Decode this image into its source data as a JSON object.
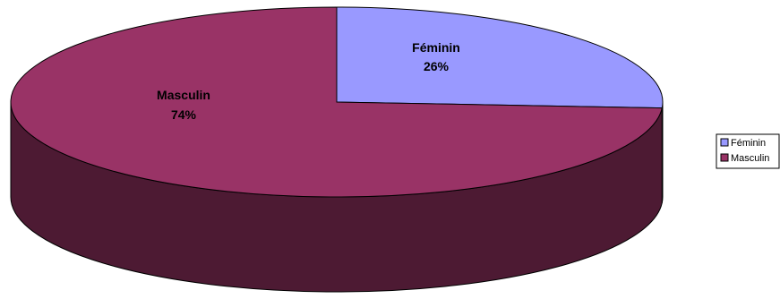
{
  "chart_data": {
    "type": "pie",
    "style": "3d",
    "title": "",
    "slices": [
      {
        "label": "Féminin",
        "percent": "26%",
        "value": 26,
        "color": "#9999ff"
      },
      {
        "label": "Masculin",
        "percent": "74%",
        "value": 74,
        "color": "#993366"
      }
    ],
    "legend": {
      "placement": "right",
      "entries": [
        "Féminin",
        "Masculin"
      ]
    }
  },
  "colors": {
    "background": "#ffffff",
    "outline": "#000000",
    "masculin_side": "#4d1a33",
    "feminin_side": "#4d4d80"
  }
}
